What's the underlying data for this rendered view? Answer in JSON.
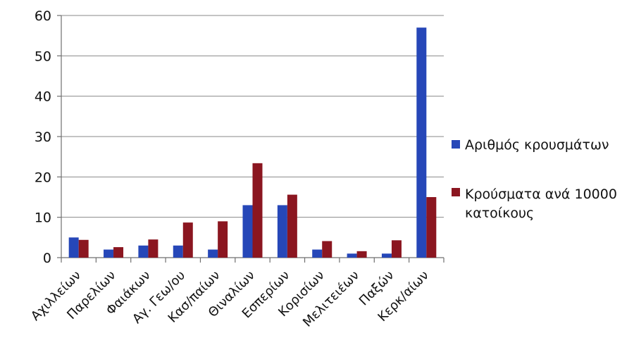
{
  "chart_data": {
    "type": "bar",
    "categories": [
      "Αχιλλείων",
      "Παρελίων",
      "Φαιάκων",
      "Αγ. Γεω/ου",
      "Κασ/παίων",
      "Θιναλίων",
      "Εσπερίων",
      "Κορισίων",
      "Μελιτειέων",
      "Παξών",
      "Κερκ/αίων"
    ],
    "series": [
      {
        "name": "Αριθμός κρουσμάτων",
        "color": "#2647b8",
        "values": [
          5,
          2,
          3,
          3,
          2,
          13,
          13,
          2,
          1,
          1,
          57
        ]
      },
      {
        "name_lines": [
          "Κρούσματα ανά 10000",
          "κατοίκους"
        ],
        "color": "#8b1620",
        "values": [
          4.4,
          2.6,
          4.5,
          8.7,
          9.0,
          23.4,
          15.6,
          4.1,
          1.6,
          4.3,
          15.0
        ]
      }
    ],
    "ylim": [
      0,
      60
    ],
    "yticks": [
      0,
      10,
      20,
      30,
      40,
      50,
      60
    ],
    "grid": true,
    "legend_position": "right"
  }
}
